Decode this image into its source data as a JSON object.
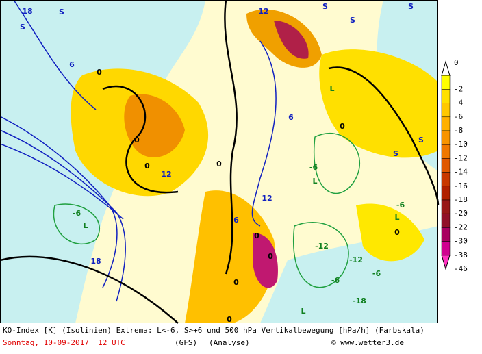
{
  "map": {
    "labels": [
      "18",
      "S",
      "S",
      "6",
      "0",
      "12",
      "S",
      "S",
      "S",
      "L",
      "0",
      "-6",
      "6",
      "12",
      "0",
      "-6",
      "L",
      "0",
      "12",
      "6",
      "0",
      "0",
      "0",
      "S",
      "S",
      "L",
      "-6",
      "18",
      "-12",
      "-6",
      "0",
      "-18",
      "L",
      "0",
      "L",
      "0",
      "-12",
      "-6"
    ]
  },
  "legend": {
    "labels": [
      "0",
      "-2",
      "-4",
      "-6",
      "-8",
      "-10",
      "-12",
      "-14",
      "-16",
      "-18",
      "-20",
      "-22",
      "-30",
      "-38",
      "-46"
    ],
    "colors": [
      "#ffffff",
      "#ffff00",
      "#ffe000",
      "#ffc800",
      "#ffb000",
      "#f89400",
      "#f07800",
      "#e05800",
      "#c83800",
      "#b02000",
      "#981818",
      "#901028",
      "#a80060",
      "#d00090",
      "#ff30c0"
    ]
  },
  "footer": {
    "line1": "KO-Index [K] (Isolinien) Extrema: L<-6, S>+6 und 500 hPa Vertikalbewegung [hPa/h] (Farbskala)",
    "date": "Sonntag, 10-09-2017  12 UTC",
    "model": "(GFS)",
    "run": "(Analyse)",
    "credit": "© www.wetter3.de"
  }
}
